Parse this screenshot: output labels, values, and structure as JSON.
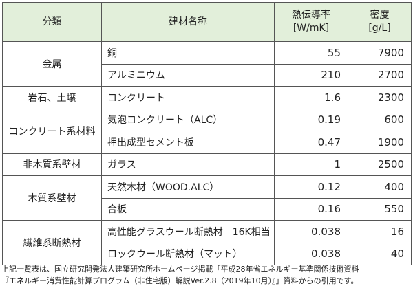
{
  "table": {
    "header": [
      [
        "分類"
      ],
      [
        "建材名称"
      ],
      [
        "熱伝導率",
        "[W/mK]"
      ],
      [
        "密度",
        "[g/L]"
      ]
    ],
    "groups": [
      {
        "category": "金属",
        "items": [
          {
            "name": "銅",
            "conductivity": "55",
            "density": "7900"
          },
          {
            "name": "アルミニウム",
            "conductivity": "210",
            "density": "2700"
          }
        ]
      },
      {
        "category": "岩石、土壌",
        "items": [
          {
            "name": "コンクリート",
            "conductivity": "1.6",
            "density": "2300"
          }
        ]
      },
      {
        "category": "コンクリート系材料",
        "items": [
          {
            "name": "気泡コンクリート（ALC）",
            "conductivity": "0.19",
            "density": "600"
          },
          {
            "name": "押出成型セメント板",
            "conductivity": "0.47",
            "density": "1900"
          }
        ]
      },
      {
        "category": "非木質系壁材",
        "items": [
          {
            "name": "ガラス",
            "conductivity": "1",
            "density": "2500"
          }
        ]
      },
      {
        "category": "木質系壁材",
        "items": [
          {
            "name": "天然木材（WOOD.ALC）",
            "conductivity": "0.12",
            "density": "400"
          },
          {
            "name": "合板",
            "conductivity": "0.16",
            "density": "550"
          }
        ]
      },
      {
        "category": "繊維系断熱材",
        "items": [
          {
            "name": "高性能グラスウール断熱材　16K相当",
            "conductivity": "0.038",
            "density": "16"
          },
          {
            "name": "ロックウール断熱材（マット）",
            "conductivity": "0.038",
            "density": "40"
          }
        ]
      }
    ]
  },
  "footer": [
    "上記一覧表は、国立研究開発法人建築研究所ホームページ掲載「平成28年省エネルギー基準関係技術資料",
    "『エネルギー消費性能計算プログラム（非住宅版）解説Ver.2.8（2019年10月）』」資料からの引用です。"
  ]
}
